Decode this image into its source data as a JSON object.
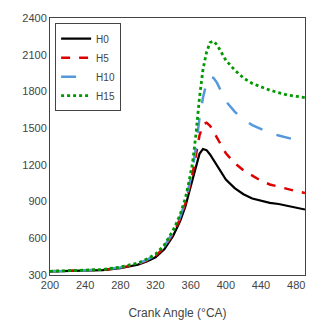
{
  "chart_data": {
    "type": "line",
    "xlabel": "Crank Angle (°CA)",
    "xlim": [
      200,
      490
    ],
    "ylim": [
      300,
      2400
    ],
    "xticks": [
      200,
      240,
      280,
      320,
      360,
      400,
      440,
      480
    ],
    "yticks": [
      300,
      600,
      900,
      1200,
      1500,
      1800,
      2100,
      2400
    ],
    "grid": false,
    "legend": "upper left",
    "x": [
      200,
      220,
      240,
      260,
      280,
      300,
      310,
      320,
      330,
      340,
      348,
      354,
      358,
      362,
      366,
      370,
      374,
      378,
      382,
      386,
      390,
      400,
      410,
      420,
      430,
      440,
      450,
      460,
      470,
      480,
      490
    ],
    "series": [
      {
        "name": "H0",
        "color": "#000000",
        "line_style": "solid",
        "values": [
          330,
          332,
          335,
          340,
          355,
          385,
          410,
          445,
          510,
          620,
          740,
          860,
          970,
          1080,
          1190,
          1290,
          1330,
          1320,
          1285,
          1240,
          1190,
          1080,
          1010,
          960,
          925,
          905,
          890,
          880,
          865,
          850,
          835
        ]
      },
      {
        "name": "H5",
        "color": "#dd0000",
        "line_style": "dashed",
        "values": [
          330,
          332,
          335,
          342,
          358,
          390,
          418,
          455,
          525,
          638,
          760,
          885,
          1000,
          1120,
          1280,
          1440,
          1530,
          1545,
          1520,
          1475,
          1420,
          1295,
          1215,
          1155,
          1110,
          1070,
          1040,
          1020,
          1000,
          985,
          970
        ]
      },
      {
        "name": "H10",
        "color": "#5599dd",
        "line_style": "longdashed",
        "values": [
          330,
          333,
          336,
          343,
          362,
          393,
          424,
          462,
          535,
          650,
          775,
          905,
          1025,
          1155,
          1350,
          1580,
          1750,
          1870,
          1920,
          1910,
          1870,
          1720,
          1635,
          1570,
          1525,
          1490,
          1460,
          1440,
          1420,
          1400,
          1385
        ]
      },
      {
        "name": "H15",
        "color": "#009900",
        "line_style": "dotted",
        "values": [
          330,
          333,
          337,
          345,
          365,
          398,
          430,
          470,
          545,
          665,
          793,
          928,
          1060,
          1210,
          1450,
          1750,
          1980,
          2120,
          2200,
          2210,
          2180,
          2055,
          1975,
          1910,
          1865,
          1835,
          1810,
          1790,
          1770,
          1760,
          1750
        ]
      }
    ]
  }
}
